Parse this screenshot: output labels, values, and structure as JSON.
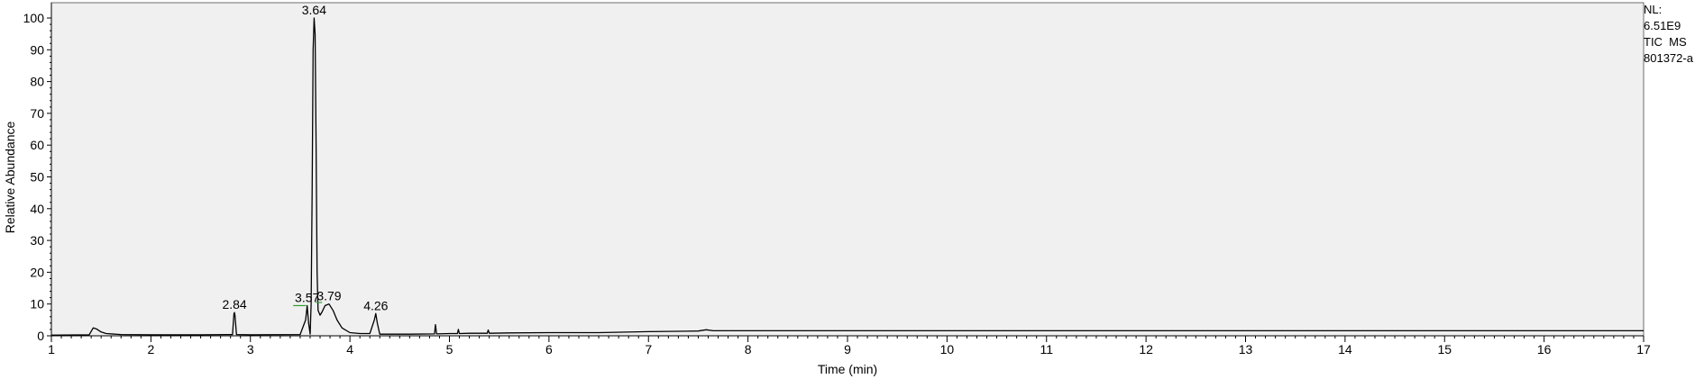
{
  "chart_data": {
    "type": "line",
    "xlabel": "Time (min)",
    "ylabel": "Relative Abundance",
    "xlim": [
      1,
      17
    ],
    "ylim": [
      0,
      100
    ],
    "x_ticks": [
      1,
      2,
      3,
      4,
      5,
      6,
      7,
      8,
      9,
      10,
      11,
      12,
      13,
      14,
      15,
      16,
      17
    ],
    "y_ticks": [
      0,
      10,
      20,
      30,
      40,
      50,
      60,
      70,
      80,
      90,
      100
    ],
    "grid": false,
    "series": [
      {
        "x": [
          1.0,
          1.38,
          1.42,
          1.45,
          1.5,
          1.55,
          1.7,
          2.0,
          2.5,
          2.82,
          2.835,
          2.84,
          2.845,
          2.86,
          3.0,
          3.5,
          3.555,
          3.57,
          3.585,
          3.6,
          3.61,
          3.62,
          3.63,
          3.64,
          3.65,
          3.66,
          3.67,
          3.68,
          3.7,
          3.72,
          3.75,
          3.79,
          3.83,
          3.87,
          3.92,
          4.0,
          4.1,
          4.2,
          4.245,
          4.26,
          4.275,
          4.3,
          4.6,
          4.85,
          4.86,
          4.87,
          5.0,
          5.08,
          5.09,
          5.1,
          5.2,
          5.38,
          5.39,
          5.4,
          5.6,
          6.0,
          6.5,
          7.0,
          7.5,
          7.58,
          7.65,
          8.0,
          12.0,
          17.0
        ],
        "y": [
          0.2,
          0.3,
          2.5,
          2.2,
          1.2,
          0.7,
          0.4,
          0.3,
          0.3,
          0.4,
          7.0,
          7.3,
          6.5,
          0.4,
          0.3,
          0.4,
          5.0,
          9.5,
          4.0,
          0.5,
          10.0,
          45.0,
          90.0,
          100.0,
          95.0,
          60.0,
          20.0,
          8.0,
          6.5,
          7.5,
          9.5,
          10.0,
          8.0,
          5.0,
          2.5,
          1.0,
          0.7,
          0.7,
          5.0,
          7.0,
          4.0,
          0.5,
          0.5,
          0.6,
          3.5,
          0.6,
          0.7,
          0.7,
          2.0,
          0.7,
          0.8,
          0.8,
          1.8,
          0.8,
          0.9,
          1.0,
          1.0,
          1.3,
          1.5,
          1.9,
          1.6,
          1.6,
          1.6,
          1.6
        ]
      }
    ],
    "annotations": [
      {
        "text": "2.84",
        "x": 2.84,
        "y": 7.3
      },
      {
        "text": "3.57",
        "x": 3.57,
        "y": 9.5
      },
      {
        "text": "3.64",
        "x": 3.64,
        "y": 100
      },
      {
        "text": "3.79",
        "x": 3.79,
        "y": 10.0
      },
      {
        "text": "4.26",
        "x": 4.26,
        "y": 7.0
      }
    ]
  },
  "info_box": {
    "line1": "NL:",
    "line2": "6.51E9",
    "line3": "TIC  MS",
    "line4": "801372-a"
  }
}
